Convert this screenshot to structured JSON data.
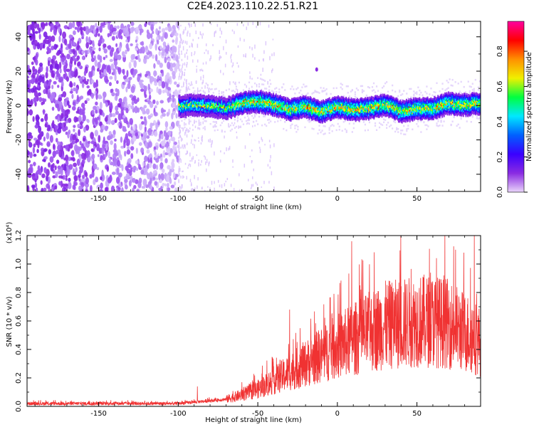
{
  "title": "C2E4.2023.110.22.51.R21",
  "chart_data": [
    {
      "type": "heatmap",
      "xlabel": "Height of straight line (km)",
      "ylabel": "Frequency (Hz)",
      "xlim": [
        -195,
        90
      ],
      "ylim": [
        -50,
        49
      ],
      "xticks": [
        -150,
        -100,
        -50,
        0,
        50
      ],
      "yticks": [
        -40,
        -20,
        0,
        20,
        40
      ],
      "colorbar": {
        "label": "Normalized spectral amplitude",
        "range": [
          0.0,
          0.97
        ],
        "ticks": [
          0.0,
          0.2,
          0.4,
          0.6,
          0.8
        ],
        "colors": [
          "#ead5fa",
          "#8a2be2",
          "#3a00ff",
          "#0060ff",
          "#00e8ff",
          "#00ff40",
          "#f0f000",
          "#ff9000",
          "#ff0000",
          "#ff00a0"
        ]
      },
      "noise_region_x": [
        -195,
        -100
      ],
      "signal_region_x": [
        -100,
        90
      ],
      "signal_center_hz": [
        [
          -100,
          0
        ],
        [
          -90,
          1
        ],
        [
          -80,
          0
        ],
        [
          -70,
          -1
        ],
        [
          -60,
          2
        ],
        [
          -50,
          3
        ],
        [
          -40,
          1
        ],
        [
          -30,
          -2
        ],
        [
          -20,
          0
        ],
        [
          -10,
          -3
        ],
        [
          0,
          0
        ],
        [
          10,
          -2
        ],
        [
          20,
          -1
        ],
        [
          30,
          1
        ],
        [
          40,
          -3
        ],
        [
          50,
          -1
        ],
        [
          60,
          -1
        ],
        [
          70,
          2
        ],
        [
          80,
          1
        ],
        [
          90,
          2
        ]
      ],
      "signal_halfwidth_hz": 6
    },
    {
      "type": "line",
      "xlabel": "Height of straight line (km)",
      "ylabel": "SNR (10 * v/v)",
      "yscale_label": "(x10⁴)",
      "xlim": [
        -195,
        90
      ],
      "ylim": [
        0,
        1.2
      ],
      "xticks": [
        -150,
        -100,
        -50,
        0,
        50
      ],
      "yticks": [
        0.0,
        0.2,
        0.4,
        0.6,
        0.8,
        1.0,
        1.2
      ],
      "color": "#f03232",
      "x": [
        -195,
        -180,
        -160,
        -140,
        -120,
        -100,
        -90,
        -80,
        -70,
        -60,
        -50,
        -40,
        -30,
        -20,
        -10,
        0,
        10,
        20,
        30,
        40,
        50,
        60,
        70,
        80,
        85,
        90
      ],
      "y": [
        0.02,
        0.02,
        0.02,
        0.02,
        0.02,
        0.02,
        0.03,
        0.04,
        0.05,
        0.08,
        0.12,
        0.18,
        0.24,
        0.3,
        0.36,
        0.42,
        0.47,
        0.52,
        0.57,
        0.58,
        0.6,
        0.6,
        0.58,
        0.52,
        0.5,
        0.45
      ],
      "spikes": [
        [
          -88,
          0.14
        ],
        [
          -60,
          0.17
        ],
        [
          -30,
          0.68
        ],
        [
          -12,
          0.52
        ],
        [
          9,
          1.16
        ],
        [
          20,
          0.75
        ],
        [
          35,
          0.83
        ],
        [
          67,
          0.92
        ],
        [
          86,
          1.2
        ]
      ]
    }
  ]
}
